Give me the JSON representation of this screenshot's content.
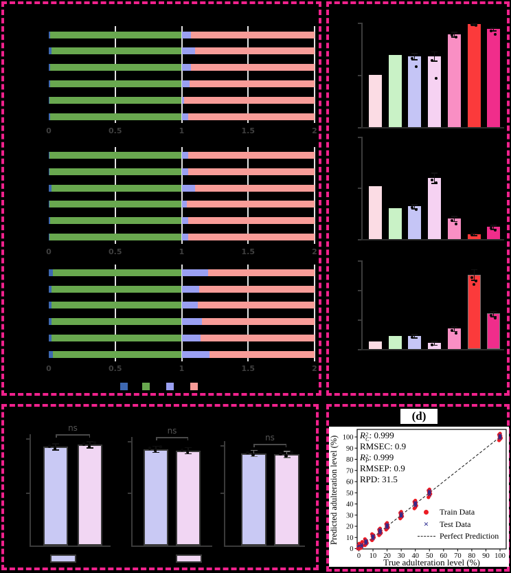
{
  "page": {
    "background": "#000000",
    "panel_border_color": "#f0218c",
    "note": "Axis titles, category labels and panel labels (a)(b)(c) are rendered black-on-black in the source image and are illegible; only legible text is encoded."
  },
  "chart_data": [
    {
      "id": "a",
      "type": "bar",
      "orientation": "horizontal",
      "stacked": true,
      "xlim": [
        0,
        2
      ],
      "x_tick_labels": [
        "0",
        "0.5",
        "1",
        "1.5",
        "2"
      ],
      "x_tick_values": [
        0,
        0.5,
        1,
        1.5,
        2
      ],
      "grid": true,
      "segment_colors": [
        "#3e68b1",
        "#69a84f",
        "#9aa0f2",
        "#f89c98"
      ],
      "legend_swatch_colors": [
        "#3e68b1",
        "#69a84f",
        "#9aa0f2",
        "#f89c98"
      ],
      "bars_note": "each bar = [end of first (blue) segment, end of third (periwinkle) segment]; green spans to 1.0, salmon spans to 2.0",
      "subplots": [
        {
          "bars": [
            [
              0.012,
              1.07
            ],
            [
              0.02,
              1.1
            ],
            [
              0.012,
              1.07
            ],
            [
              0.012,
              1.06
            ],
            [
              0.006,
              1.02
            ],
            [
              0.012,
              1.05
            ]
          ]
        },
        {
          "bars": [
            [
              0.006,
              1.05
            ],
            [
              0.006,
              1.05
            ],
            [
              0.02,
              1.1
            ],
            [
              0.006,
              1.04
            ],
            [
              0.01,
              1.05
            ],
            [
              0.006,
              1.05
            ]
          ]
        },
        {
          "bars": [
            [
              0.03,
              1.2
            ],
            [
              0.02,
              1.13
            ],
            [
              0.02,
              1.12
            ],
            [
              0.02,
              1.15
            ],
            [
              0.02,
              1.14
            ],
            [
              0.03,
              1.21
            ]
          ]
        }
      ]
    },
    {
      "id": "b",
      "type": "bar",
      "bar_colors": [
        "#c9c9f4",
        "#f1d6f3"
      ],
      "bar_edge_color": "#3a3a3a",
      "sig_label": "ns",
      "values_note": "bar heights as fraction of group axis height; y tick labels illegible",
      "groups": [
        {
          "values": [
            0.92,
            0.94
          ],
          "sig": "ns"
        },
        {
          "values": [
            0.9,
            0.885
          ],
          "sig": "ns"
        },
        {
          "values": [
            0.86,
            0.85
          ],
          "sig": "ns"
        }
      ],
      "legend_swatch_colors": [
        "#c9c9f4",
        "#f1d6f3"
      ]
    },
    {
      "id": "c",
      "type": "bar",
      "bar_colors": [
        "#fbdce4",
        "#c9f2c6",
        "#c5c5f6",
        "#f6d2f2",
        "#f98fc4",
        "#fb3a3b",
        "#f02d8b"
      ],
      "values_note": "bar heights as fraction of subplot axis height; tick labels illegible",
      "subplots": [
        {
          "values": [
            0.5,
            0.69,
            0.68,
            0.68,
            0.89,
            0.985,
            0.94
          ],
          "errors": [
            0,
            0,
            0.03,
            0.045,
            0.022,
            0.006,
            0.015
          ],
          "dots": [
            [],
            [],
            [
              -0.02,
              -0.1
            ],
            [
              -0.04,
              -0.21
            ],
            [
              -0.01,
              -0.03
            ],
            [
              -0.005,
              -0.012
            ],
            [
              -0.02,
              -0.05
            ]
          ]
        },
        {
          "values": [
            0.52,
            0.3,
            0.32,
            0.6,
            0.2,
            0.05,
            0.12
          ],
          "errors": [
            0,
            0,
            0.02,
            0.05,
            0.025,
            0.012,
            0.02
          ],
          "dots": [
            [],
            [],
            [
              -0.01,
              -0.03
            ],
            [
              -0.02,
              -0.05
            ],
            [
              -0.02,
              -0.05
            ],
            [
              -0.01
            ],
            [
              -0.01,
              -0.03
            ]
          ]
        },
        {
          "values": [
            0.085,
            0.15,
            0.15,
            0.07,
            0.23,
            0.84,
            0.4
          ],
          "errors": [
            0,
            0,
            0.02,
            0.02,
            0.025,
            0.06,
            0.03
          ],
          "dots": [
            [],
            [],
            [
              -0.02
            ],
            [
              -0.02
            ],
            [
              -0.02,
              -0.05
            ],
            [
              -0.03,
              -0.07,
              -0.11
            ],
            [
              -0.02,
              -0.05
            ]
          ]
        }
      ]
    },
    {
      "id": "d",
      "type": "scatter",
      "title": "(d)",
      "xlabel": "True adulteration level (%)",
      "ylabel": "Predicted adulteration level (%)",
      "ticks": [
        0,
        10,
        20,
        30,
        40,
        50,
        60,
        70,
        80,
        90,
        100
      ],
      "xlim": [
        0,
        100
      ],
      "ylim": [
        0,
        100
      ],
      "stats": [
        {
          "base": "R",
          "sup": "2",
          "sub": "C",
          "rest": ": 0.999"
        },
        {
          "plain": "RMSEC: 0.9"
        },
        {
          "base": "R",
          "sup": "2",
          "sub": "P",
          "rest": ": 0.999"
        },
        {
          "plain": "RMSEP: 0.9"
        },
        {
          "plain": "RPD: 31.5"
        }
      ],
      "legend": [
        {
          "marker": "dot",
          "label": "Train Data",
          "color": "#ec1c24"
        },
        {
          "marker": "cross",
          "label": "Test Data",
          "color": "#2b2b8f"
        },
        {
          "marker": "dash",
          "label": "Perfect Prediction",
          "color": "#222222"
        }
      ],
      "train_color": "#ec1c24",
      "test_color": "#2b2b8f",
      "perfect_line": {
        "from": [
          0,
          0
        ],
        "to": [
          100,
          100
        ],
        "style": "dashed",
        "color": "#111111"
      },
      "clusters": [
        {
          "x": 0,
          "train": [
            0,
            1,
            2,
            3,
            4.5
          ],
          "test": [
            0.5,
            1.5,
            3
          ]
        },
        {
          "x": 1,
          "train": [
            -1,
            0,
            1.5,
            3
          ],
          "test": [
            0,
            1
          ]
        },
        {
          "x": 2,
          "train": [
            -1.5,
            0,
            1,
            2.5,
            4
          ],
          "test": [
            0,
            1.5
          ]
        },
        {
          "x": 5,
          "train": [
            -2,
            -1,
            0,
            1,
            2,
            3.5
          ],
          "test": [
            -0.5,
            0.8,
            2
          ]
        },
        {
          "x": 10,
          "train": [
            -2.5,
            -1,
            0,
            1,
            2,
            3
          ],
          "test": [
            -1,
            0.5,
            1.5
          ]
        },
        {
          "x": 15,
          "train": [
            -3,
            -2,
            -1,
            0,
            1,
            2,
            3
          ],
          "test": [
            -1,
            0.5,
            1.8
          ]
        },
        {
          "x": 20,
          "train": [
            -3,
            -2,
            -1,
            0,
            1,
            2,
            3
          ],
          "test": [
            -1.2,
            0.3,
            1.5
          ]
        },
        {
          "x": 30,
          "train": [
            -3,
            -2,
            -1,
            0,
            1,
            2,
            3
          ],
          "test": [
            -1,
            0,
            1.5
          ]
        },
        {
          "x": 40,
          "train": [
            -4,
            -3,
            -1.5,
            0,
            1,
            2,
            3
          ],
          "test": [
            -1.5,
            0,
            1.2
          ]
        },
        {
          "x": 50,
          "train": [
            -4,
            -2.5,
            -1,
            0,
            1,
            2,
            3
          ],
          "test": [
            -1.5,
            0.2,
            1.5
          ]
        },
        {
          "x": 100,
          "train": [
            -3,
            -2,
            -1,
            0,
            1,
            2,
            3
          ],
          "test": [
            -1,
            0.3,
            1.5
          ]
        }
      ]
    }
  ]
}
